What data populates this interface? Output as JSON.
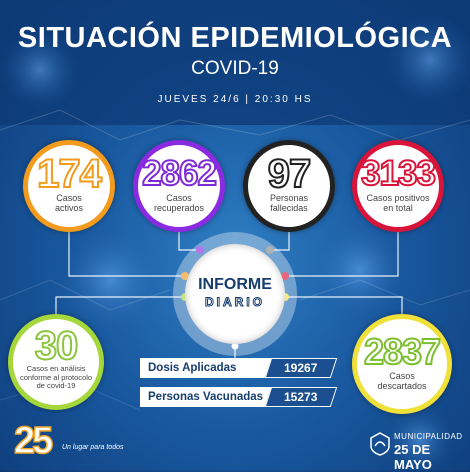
{
  "header": {
    "title": "SITUACIÓN EPIDEMIOLÓGICA",
    "subtitle": "COVID-19",
    "date": "JUEVES 24/6 | 20:30 HS"
  },
  "stats": [
    {
      "value": "174",
      "label1": "Casos",
      "label2": "activos",
      "color": "#f29b1d"
    },
    {
      "value": "2862",
      "label1": "Casos",
      "label2": "recuperados",
      "color": "#8a2be2"
    },
    {
      "value": "97",
      "label1": "Personas",
      "label2": "fallecidas",
      "color": "#222222"
    },
    {
      "value": "3133",
      "label1": "Casos positivos",
      "label2": "en total",
      "color": "#d8143a"
    },
    {
      "value": "30",
      "label1": "Casos en análisis",
      "label2": "conforme al protocolo",
      "label3": "de covid-19",
      "color": "#8cc63f"
    },
    {
      "value": "2837",
      "label1": "Casos",
      "label2": "descartados",
      "color": "#f0e03a"
    }
  ],
  "hub": {
    "line1": "INFORME",
    "line2": "DIARIO"
  },
  "vaccination": [
    {
      "label": "Dosis Aplicadas",
      "value": "19267"
    },
    {
      "label": "Personas Vacunadas",
      "value": "15273"
    }
  ],
  "footer": {
    "logo_number": "25",
    "slogan": "Un lugar para todos",
    "municipality_line1": "MUNICIPALIDAD",
    "municipality_line2": "25 DE MAYO"
  }
}
